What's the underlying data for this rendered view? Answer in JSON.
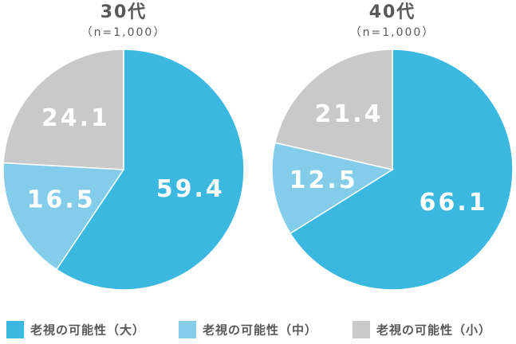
{
  "chart_data": [
    {
      "type": "pie",
      "title": "30代",
      "subtitle": "（n=1,000）",
      "categories": [
        "老視の可能性（大）",
        "老視の可能性（中）",
        "老視の可能性（小）"
      ],
      "values": [
        59.4,
        16.5,
        24.1
      ],
      "colors": [
        "#3bb8e0",
        "#84cdea",
        "#c9c9c9"
      ]
    },
    {
      "type": "pie",
      "title": "40代",
      "subtitle": "（n=1,000）",
      "categories": [
        "老視の可能性（大）",
        "老視の可能性（中）",
        "老視の可能性（小）"
      ],
      "values": [
        66.1,
        12.5,
        21.4
      ],
      "colors": [
        "#3bb8e0",
        "#84cdea",
        "#c9c9c9"
      ]
    }
  ]
}
